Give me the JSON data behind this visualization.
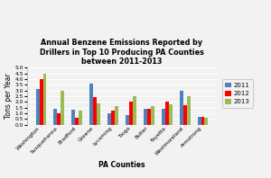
{
  "title": "Annual Benzene Emissions Reported by\nDrillers in Top 10 Producing PA Counties\nbetween 2011-2013",
  "xlabel": "PA Counties",
  "ylabel": "Tons per Year",
  "categories": [
    "Washington",
    "Susquehanna",
    "Bradford",
    "Greene",
    "Lycoming",
    "Tioga",
    "Butler",
    "Fayette",
    "Westmoreland",
    "Armstrong"
  ],
  "series": {
    "2011": [
      3.1,
      1.4,
      1.3,
      3.6,
      1.0,
      0.8,
      1.4,
      1.35,
      3.0,
      0.65
    ],
    "2012": [
      4.0,
      1.0,
      0.6,
      2.4,
      1.2,
      2.0,
      1.4,
      2.0,
      1.7,
      0.7
    ],
    "2013": [
      4.5,
      3.0,
      1.2,
      1.9,
      1.6,
      2.5,
      1.6,
      1.8,
      2.5,
      0.6
    ]
  },
  "colors": {
    "2011": "#4F81BD",
    "2012": "#FF0000",
    "2013": "#9BBB59"
  },
  "ylim": [
    0,
    5
  ],
  "yticks": [
    0,
    0.5,
    1.0,
    1.5,
    2.0,
    2.5,
    3.0,
    3.5,
    4.0,
    4.5,
    5.0
  ],
  "legend_labels": [
    "2011",
    "2012",
    "2013"
  ],
  "background_color": "#F2F2F2",
  "grid_color": "#FFFFFF",
  "title_fontsize": 5.8,
  "axis_label_fontsize": 5.5,
  "tick_fontsize": 4.2,
  "legend_fontsize": 5.0,
  "bar_width": 0.2
}
